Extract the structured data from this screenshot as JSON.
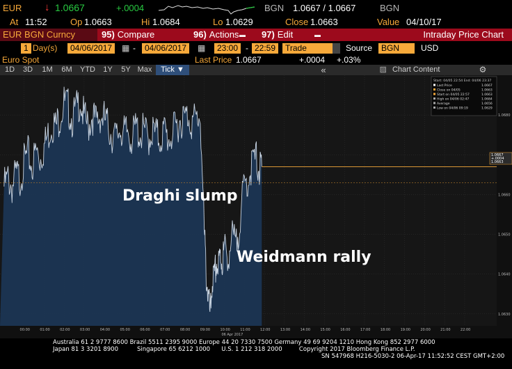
{
  "ticker": {
    "symbol": "EUR",
    "arrow": "↓",
    "last": "1.0667",
    "change": "+.0004",
    "source": "BGN",
    "bid_ask": "1.0667 / 1.0667",
    "source2": "BGN"
  },
  "stats": {
    "at_label": "At",
    "at_value": "11:52",
    "op_label": "Op",
    "op_value": "1.0663",
    "hi_label": "Hi",
    "hi_value": "1.0684",
    "lo_label": "Lo",
    "lo_value": "1.0629",
    "close_label": "Close",
    "close_value": "1.0663",
    "value_label": "Value",
    "value_value": "04/10/17"
  },
  "toolbar": {
    "security": "EUR BGN Curncy",
    "compare_num": "95)",
    "compare": "Compare",
    "actions_num": "96)",
    "actions": "Actions",
    "edit_num": "97)",
    "edit": "Edit",
    "title": "Intraday Price Chart"
  },
  "range": {
    "count": "1",
    "unit": "Day(s)",
    "start_date": "04/06/2017",
    "end_date": "04/06/2017",
    "start_time": "23:00",
    "end_time": "22:59",
    "field": "Trade",
    "source_label": "Source",
    "source_value": "BGN",
    "currency": "USD"
  },
  "info": {
    "name": "Euro Spot",
    "last_price_label": "Last Price",
    "last_price": "1.0667",
    "change": "+.0004",
    "change_pct": "+.03%"
  },
  "periods": [
    "1D",
    "3D",
    "1M",
    "6M",
    "YTD",
    "1Y",
    "5Y",
    "Max"
  ],
  "tick_label": "Tick ▼",
  "chart_content_label": "Chart Content",
  "annotations": {
    "slump": "Draghi slump",
    "rally": "Weidmann rally"
  },
  "legend": {
    "header": "Start: 04/05 22:54 End: 04/06 23:37",
    "rows": [
      {
        "label": "Last Price",
        "value": "1.0667"
      },
      {
        "label": "Close on 04/05",
        "value": "1.0663"
      },
      {
        "label": "Start on 04/05 22:57",
        "value": "1.0663"
      },
      {
        "label": "High on 04/06 02:47",
        "value": "1.0684"
      },
      {
        "label": "Average",
        "value": "1.0656"
      },
      {
        "label": "Low on 04/06 09:19",
        "value": "1.0629"
      }
    ]
  },
  "chart_data": {
    "type": "area",
    "x_ticks": [
      "00:00",
      "01:00",
      "02:00",
      "03:00",
      "04:00",
      "05:00",
      "06:00",
      "07:00",
      "08:00",
      "09:00",
      "10:00",
      "11:00",
      "12:00",
      "13:00",
      "14:00",
      "15:00",
      "16:00",
      "17:00",
      "18:00",
      "19:00",
      "20:00",
      "21:00",
      "22:00"
    ],
    "x_date_label": "06 Apr 2017",
    "y_ticks": [
      "1.0630",
      "1.0640",
      "1.0650",
      "1.0660",
      "1.0670",
      "1.0680"
    ],
    "ylim": [
      1.0627,
      1.069
    ],
    "price_tags": [
      "1.0667",
      "+.0004",
      "1.0663"
    ],
    "series": [
      {
        "values": [
          [
            -1.0,
            1.0662
          ],
          [
            -0.8,
            1.0664
          ],
          [
            -0.6,
            1.0662
          ],
          [
            -0.4,
            1.0665
          ],
          [
            -0.2,
            1.0664
          ],
          [
            0.0,
            1.0668
          ],
          [
            0.2,
            1.067
          ],
          [
            0.4,
            1.0667
          ],
          [
            0.6,
            1.0671
          ],
          [
            0.8,
            1.0669
          ],
          [
            1.0,
            1.0672
          ],
          [
            1.2,
            1.0675
          ],
          [
            1.4,
            1.0678
          ],
          [
            1.6,
            1.0677
          ],
          [
            1.8,
            1.068
          ],
          [
            2.0,
            1.0683
          ],
          [
            2.2,
            1.0682
          ],
          [
            2.4,
            1.0679
          ],
          [
            2.6,
            1.0681
          ],
          [
            2.8,
            1.0684
          ],
          [
            3.0,
            1.0679
          ],
          [
            3.2,
            1.0677
          ],
          [
            3.4,
            1.068
          ],
          [
            3.6,
            1.0678
          ],
          [
            3.8,
            1.068
          ],
          [
            4.0,
            1.0679
          ],
          [
            4.2,
            1.0677
          ],
          [
            4.4,
            1.0675
          ],
          [
            4.6,
            1.0674
          ],
          [
            4.8,
            1.0677
          ],
          [
            5.0,
            1.0675
          ],
          [
            5.2,
            1.0676
          ],
          [
            5.4,
            1.0674
          ],
          [
            5.6,
            1.0677
          ],
          [
            5.8,
            1.0675
          ],
          [
            6.0,
            1.0676
          ],
          [
            6.2,
            1.0674
          ],
          [
            6.4,
            1.0676
          ],
          [
            6.6,
            1.0675
          ],
          [
            6.8,
            1.0674
          ],
          [
            7.0,
            1.0676
          ],
          [
            7.2,
            1.0674
          ],
          [
            7.4,
            1.0675
          ],
          [
            7.6,
            1.0677
          ],
          [
            7.8,
            1.0679
          ],
          [
            8.0,
            1.0679
          ],
          [
            8.2,
            1.068
          ],
          [
            8.4,
            1.0678
          ],
          [
            8.6,
            1.0679
          ],
          [
            8.8,
            1.068
          ],
          [
            9.0,
            1.065
          ],
          [
            9.1,
            1.064
          ],
          [
            9.2,
            1.0634
          ],
          [
            9.3,
            1.0629
          ],
          [
            9.4,
            1.0639
          ],
          [
            9.5,
            1.0638
          ],
          [
            9.6,
            1.0643
          ],
          [
            9.7,
            1.0641
          ],
          [
            9.8,
            1.0645
          ],
          [
            9.9,
            1.0643
          ],
          [
            10.0,
            1.0646
          ],
          [
            10.2,
            1.0645
          ],
          [
            10.4,
            1.0649
          ],
          [
            10.6,
            1.0647
          ],
          [
            10.8,
            1.0655
          ],
          [
            11.0,
            1.0662
          ],
          [
            11.2,
            1.0664
          ],
          [
            11.4,
            1.0668
          ],
          [
            11.6,
            1.0669
          ],
          [
            11.75,
            1.0666
          ],
          [
            11.87,
            1.0667
          ]
        ]
      }
    ]
  },
  "footer": {
    "line1": "Australia 61 2 9777 8600 Brazil 5511 2395 9000 Europe 44 20 7330 7500 Germany 49 69 9204 1210 Hong Kong 852 2977 6000",
    "line2": "Japan 81 3 3201 8900          Singapore 65 6212 1000      U.S. 1 212 318 2000         Copyright 2017 Bloomberg Finance L.P.",
    "line3": "SN 547968 H216-5030-2 06-Apr-17 11:52:52 CEST GMT+2:00"
  },
  "colors": {
    "accent": "#f7a93a",
    "toolbar_red": "#9c0a1c",
    "area_fill": "#1b3553",
    "area_stroke": "#c8d4e2",
    "tag_orange": "#f7a93a"
  }
}
